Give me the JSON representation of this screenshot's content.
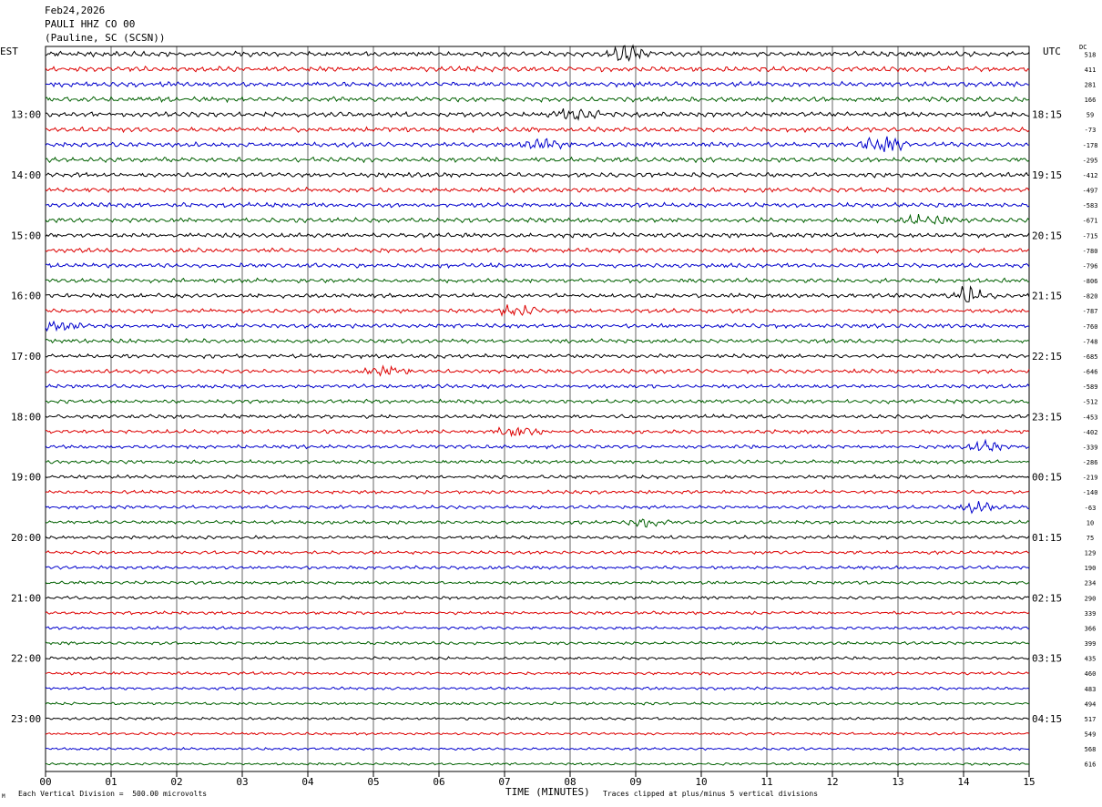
{
  "header": {
    "date": "Feb24,2026",
    "channel": "PAULI HHZ CO 00",
    "location": "(Pauline, SC (SCSN))"
  },
  "left_timezone": "EST",
  "right_timezone": "UTC",
  "dc_header": "DC",
  "footer": {
    "scale_note": "Each Vertical Division =  500.00 microvolts",
    "xlabel": "TIME (MINUTES)",
    "clip_note": "Traces clipped at plus/minus 5 vertical divisions",
    "corner_mark": "M"
  },
  "colors": {
    "trace_cycle": [
      "#000000",
      "#dd0000",
      "#0000cc",
      "#006000"
    ],
    "grid": "#000000"
  },
  "chart_data": {
    "type": "line",
    "subtype": "helicorder",
    "xlim": [
      0,
      15
    ],
    "x_ticks": [
      "00",
      "01",
      "02",
      "03",
      "04",
      "05",
      "06",
      "07",
      "08",
      "09",
      "10",
      "11",
      "12",
      "13",
      "14",
      "15"
    ],
    "left_hour_labels": [
      "13:00",
      "14:00",
      "15:00",
      "16:00",
      "17:00",
      "18:00",
      "19:00",
      "20:00",
      "21:00",
      "22:00",
      "23:00"
    ],
    "right_hour_labels": [
      "18:15",
      "19:15",
      "20:15",
      "21:15",
      "22:15",
      "23:15",
      "00:15",
      "01:15",
      "02:15",
      "03:15",
      "04:15"
    ],
    "hour_label_start_row": 4,
    "traces_per_hour": 4,
    "dc_offsets": [
      518,
      411,
      281,
      166,
      59,
      -73,
      -178,
      -295,
      -412,
      -497,
      -583,
      -671,
      -715,
      -780,
      -796,
      -806,
      -820,
      -787,
      -760,
      -748,
      -685,
      -646,
      -589,
      -512,
      -453,
      -402,
      -339,
      -286,
      -219,
      -140,
      -63,
      10,
      75,
      129,
      190,
      234,
      290,
      339,
      366,
      399,
      435,
      460,
      483,
      494,
      517,
      549,
      568,
      616
    ],
    "events": [
      {
        "trace": 0,
        "minute": 8.9,
        "amp": 1.4
      },
      {
        "trace": 4,
        "minute": 8.1,
        "amp": 1.3
      },
      {
        "trace": 6,
        "minute": 12.8,
        "amp": 1.6
      },
      {
        "trace": 6,
        "minute": 7.6,
        "amp": 1.2
      },
      {
        "trace": 11,
        "minute": 13.5,
        "amp": 1.4
      },
      {
        "trace": 16,
        "minute": 14.1,
        "amp": 1.9
      },
      {
        "trace": 17,
        "minute": 7.2,
        "amp": 1.2
      },
      {
        "trace": 18,
        "minute": 0.2,
        "amp": 1.2
      },
      {
        "trace": 21,
        "minute": 5.2,
        "amp": 1.3
      },
      {
        "trace": 25,
        "minute": 7.2,
        "amp": 1.3
      },
      {
        "trace": 26,
        "minute": 14.3,
        "amp": 1.3
      },
      {
        "trace": 30,
        "minute": 14.2,
        "amp": 1.3
      },
      {
        "trace": 31,
        "minute": 9.2,
        "amp": 1.6
      }
    ]
  }
}
